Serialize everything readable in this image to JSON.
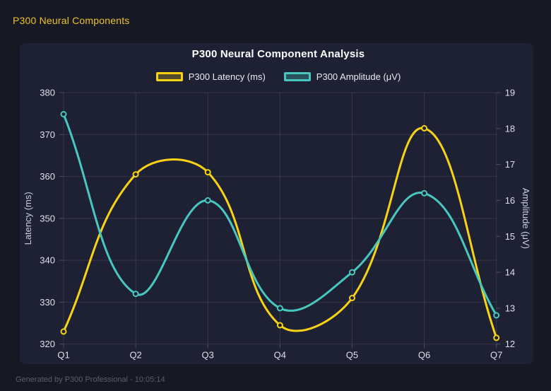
{
  "header": {
    "title": "P300 Neural Components"
  },
  "footer": {
    "text": "Generated by P300 Professional - 10:05:14"
  },
  "colors": {
    "page_bg": "#161823",
    "panel_bg": "#1E2033",
    "header_text": "#EFC31A",
    "chart_title": "#FFFFFF",
    "tick_text": "#DCE0E9",
    "axis_title_text": "#C9CEDA",
    "legend_text": "#E9EBF2",
    "grid": "rgba(255,255,255,0.10)",
    "tick_mark": "rgba(255,255,255,0.20)",
    "footer_text": "#5A5F6D",
    "latency_series": "#F7D313",
    "amplitude_series": "#46C8BE"
  },
  "chart_data": {
    "type": "line",
    "title": "P300 Neural Component Analysis",
    "categories": [
      "Q1",
      "Q2",
      "Q3",
      "Q4",
      "Q5",
      "Q6",
      "Q7"
    ],
    "series": [
      {
        "name": "P300 Latency (ms)",
        "axis": "left",
        "color": "#F7D313",
        "fill": "rgba(247,211,19,0.25)",
        "values": [
          323,
          360.5,
          361,
          324.5,
          331,
          371.5,
          321.5
        ]
      },
      {
        "name": "P300 Amplitude (μV)",
        "axis": "right",
        "color": "#46C8BE",
        "fill": "rgba(70,200,190,0.30)",
        "values": [
          18.4,
          13.4,
          16,
          13,
          14,
          16.2,
          12.8
        ]
      }
    ],
    "left_axis": {
      "label": "Latency (ms)",
      "min": 320,
      "max": 380,
      "ticks": [
        320,
        330,
        340,
        350,
        360,
        370,
        380
      ]
    },
    "right_axis": {
      "label": "Amplitude (μV)",
      "min": 12,
      "max": 19,
      "ticks": [
        12,
        13,
        14,
        15,
        16,
        17,
        18,
        19
      ]
    },
    "legend_position": "top",
    "grid": true,
    "line_tension": 0.4,
    "point_style": "circle"
  }
}
